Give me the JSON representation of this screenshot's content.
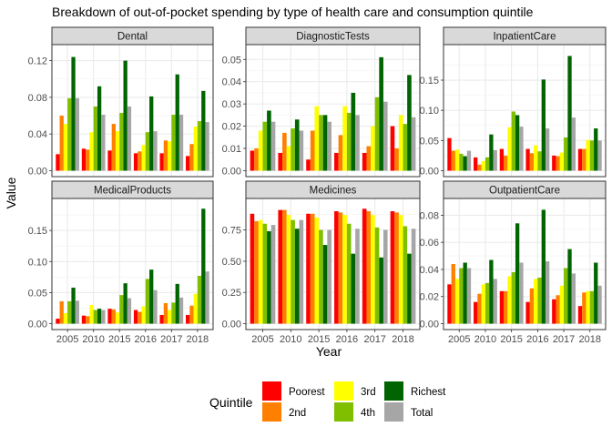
{
  "chart_data": {
    "type": "bar",
    "title": "Breakdown of out-of-pocket spending by type of health care and consumption quintile",
    "xlabel": "Year",
    "ylabel": "Value",
    "categories": [
      "2005",
      "2010",
      "2015",
      "2016",
      "2017",
      "2018"
    ],
    "legend": {
      "title": "Quintile",
      "position": "bottom",
      "entries": [
        "Poorest",
        "2nd",
        "3rd",
        "4th",
        "Richest",
        "Total"
      ]
    },
    "grid": true,
    "colors": {
      "Poorest": "#ff0000",
      "2nd": "#ff7f00",
      "3rd": "#ffff00",
      "4th": "#7fbf00",
      "Richest": "#006400",
      "Total": "#a6a6a6"
    },
    "panels": [
      {
        "name": "Dental",
        "ylim": [
          0,
          0.131
        ],
        "yticks": [
          0.0,
          0.04,
          0.08,
          0.12
        ],
        "ytick_labels": [
          "0.00",
          "0.04",
          "0.08",
          "0.12"
        ],
        "series": [
          {
            "name": "Poorest",
            "values": [
              0.018,
              0.024,
              0.022,
              0.019,
              0.019,
              0.016
            ]
          },
          {
            "name": "2nd",
            "values": [
              0.06,
              0.023,
              0.051,
              0.021,
              0.033,
              0.029
            ]
          },
          {
            "name": "3rd",
            "values": [
              0.051,
              0.042,
              0.043,
              0.028,
              0.032,
              0.048
            ]
          },
          {
            "name": "4th",
            "values": [
              0.079,
              0.07,
              0.063,
              0.042,
              0.061,
              0.054
            ]
          },
          {
            "name": "Richest",
            "values": [
              0.124,
              0.092,
              0.12,
              0.081,
              0.105,
              0.087
            ]
          },
          {
            "name": "Total",
            "values": [
              0.079,
              0.061,
              0.07,
              0.043,
              0.061,
              0.053
            ]
          }
        ]
      },
      {
        "name": "DiagnosticTests",
        "ylim": [
          0,
          0.054
        ],
        "yticks": [
          0.0,
          0.01,
          0.02,
          0.03,
          0.04,
          0.05
        ],
        "ytick_labels": [
          "0.00",
          "0.01",
          "0.02",
          "0.03",
          "0.04",
          "0.05"
        ],
        "series": [
          {
            "name": "Poorest",
            "values": [
              0.009,
              0.008,
              0.005,
              0.008,
              0.008,
              0.02
            ]
          },
          {
            "name": "2nd",
            "values": [
              0.01,
              0.017,
              0.018,
              0.016,
              0.011,
              0.01
            ]
          },
          {
            "name": "3rd",
            "values": [
              0.018,
              0.011,
              0.029,
              0.029,
              0.02,
              0.025
            ]
          },
          {
            "name": "4th",
            "values": [
              0.022,
              0.019,
              0.025,
              0.026,
              0.033,
              0.021
            ]
          },
          {
            "name": "Richest",
            "values": [
              0.027,
              0.023,
              0.025,
              0.035,
              0.051,
              0.043
            ]
          },
          {
            "name": "Total",
            "values": [
              0.022,
              0.018,
              0.022,
              0.025,
              0.031,
              0.024
            ]
          }
        ]
      },
      {
        "name": "InpatientCare",
        "ylim": [
          0,
          0.199
        ],
        "yticks": [
          0.0,
          0.05,
          0.1,
          0.15
        ],
        "ytick_labels": [
          "0.00",
          "0.05",
          "0.10",
          "0.15"
        ],
        "series": [
          {
            "name": "Poorest",
            "values": [
              0.054,
              0.022,
              0.036,
              0.036,
              0.025,
              0.036
            ]
          },
          {
            "name": "2nd",
            "values": [
              0.033,
              0.01,
              0.025,
              0.029,
              0.024,
              0.036
            ]
          },
          {
            "name": "3rd",
            "values": [
              0.035,
              0.016,
              0.072,
              0.042,
              0.03,
              0.051
            ]
          },
          {
            "name": "4th",
            "values": [
              0.028,
              0.022,
              0.098,
              0.032,
              0.055,
              0.05
            ]
          },
          {
            "name": "Richest",
            "values": [
              0.024,
              0.06,
              0.092,
              0.151,
              0.19,
              0.07
            ]
          },
          {
            "name": "Total",
            "values": [
              0.033,
              0.034,
              0.073,
              0.07,
              0.088,
              0.05
            ]
          }
        ]
      },
      {
        "name": "MedicalProducts",
        "ylim": [
          0,
          0.192
        ],
        "yticks": [
          0.0,
          0.05,
          0.1,
          0.15
        ],
        "ytick_labels": [
          "0.00",
          "0.05",
          "0.10",
          "0.15"
        ],
        "series": [
          {
            "name": "Poorest",
            "values": [
              0.008,
              0.013,
              0.024,
              0.022,
              0.014,
              0.014
            ]
          },
          {
            "name": "2nd",
            "values": [
              0.036,
              0.012,
              0.023,
              0.019,
              0.033,
              0.029
            ]
          },
          {
            "name": "3rd",
            "values": [
              0.017,
              0.03,
              0.018,
              0.028,
              0.022,
              0.048
            ]
          },
          {
            "name": "4th",
            "values": [
              0.036,
              0.022,
              0.046,
              0.072,
              0.034,
              0.077
            ]
          },
          {
            "name": "Richest",
            "values": [
              0.058,
              0.024,
              0.065,
              0.087,
              0.064,
              0.185
            ]
          },
          {
            "name": "Total",
            "values": [
              0.037,
              0.022,
              0.041,
              0.054,
              0.042,
              0.084
            ]
          }
        ]
      },
      {
        "name": "Medicines",
        "ylim": [
          0,
          0.955
        ],
        "yticks": [
          0.0,
          0.25,
          0.5,
          0.75
        ],
        "ytick_labels": [
          "0.00",
          "0.25",
          "0.50",
          "0.75"
        ],
        "series": [
          {
            "name": "Poorest",
            "values": [
              0.88,
              0.91,
              0.88,
              0.9,
              0.92,
              0.9
            ]
          },
          {
            "name": "2nd",
            "values": [
              0.82,
              0.91,
              0.88,
              0.89,
              0.9,
              0.89
            ]
          },
          {
            "name": "3rd",
            "values": [
              0.83,
              0.87,
              0.85,
              0.87,
              0.87,
              0.87
            ]
          },
          {
            "name": "4th",
            "values": [
              0.8,
              0.83,
              0.75,
              0.8,
              0.77,
              0.78
            ]
          },
          {
            "name": "Richest",
            "values": [
              0.74,
              0.76,
              0.63,
              0.56,
              0.53,
              0.56
            ]
          },
          {
            "name": "Total",
            "values": [
              0.79,
              0.83,
              0.75,
              0.76,
              0.75,
              0.76
            ]
          }
        ]
      },
      {
        "name": "OutpatientCare",
        "ylim": [
          0,
          0.088
        ],
        "yticks": [
          0.0,
          0.02,
          0.04,
          0.06,
          0.08
        ],
        "ytick_labels": [
          "0.00",
          "0.02",
          "0.04",
          "0.06",
          "0.08"
        ],
        "series": [
          {
            "name": "Poorest",
            "values": [
              0.029,
              0.016,
              0.024,
              0.016,
              0.018,
              0.013
            ]
          },
          {
            "name": "2nd",
            "values": [
              0.044,
              0.022,
              0.024,
              0.026,
              0.021,
              0.023
            ]
          },
          {
            "name": "3rd",
            "values": [
              0.033,
              0.029,
              0.035,
              0.033,
              0.028,
              0.024
            ]
          },
          {
            "name": "4th",
            "values": [
              0.041,
              0.03,
              0.038,
              0.034,
              0.041,
              0.024
            ]
          },
          {
            "name": "Richest",
            "values": [
              0.045,
              0.047,
              0.074,
              0.084,
              0.055,
              0.045
            ]
          },
          {
            "name": "Total",
            "values": [
              0.041,
              0.033,
              0.045,
              0.046,
              0.037,
              0.028
            ]
          }
        ]
      }
    ]
  }
}
